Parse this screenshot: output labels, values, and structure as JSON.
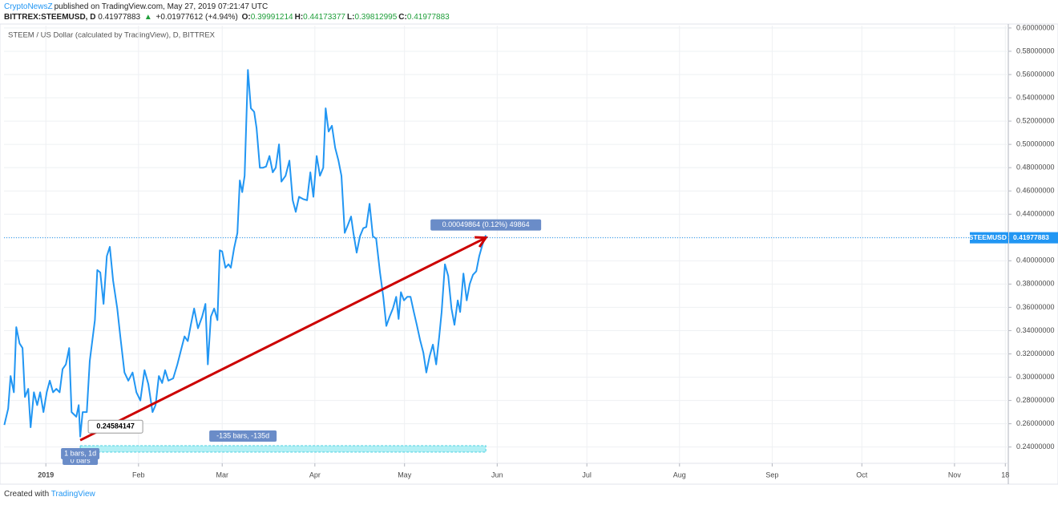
{
  "header": {
    "author": "CryptoNewsZ",
    "published": "published on TradingView.com, May 27, 2019 07:21:47 UTC",
    "symbol": "BITTREX:STEEMUSD, D",
    "last": "0.41977883",
    "arrow": "▲",
    "change": "+0.01977612 (+4.94%)",
    "ohlc": [
      {
        "key": "O:",
        "value": "0.39991214"
      },
      {
        "key": "H:",
        "value": "0.44173377"
      },
      {
        "key": "L:",
        "value": "0.39812995"
      },
      {
        "key": "C:",
        "value": "0.41977883"
      }
    ]
  },
  "chart_data": {
    "type": "line",
    "title": "STEEM / US Dollar (calculated by TradingView), D, BITTREX",
    "x": [
      -13.9,
      -12.6,
      -11.8,
      -10.7,
      -9.9,
      -8.8,
      -7.8,
      -7.0,
      -5.9,
      -5.1,
      -4.0,
      -2.9,
      -1.9,
      -0.8,
      0.3,
      1.3,
      2.4,
      3.5,
      4.6,
      5.6,
      6.7,
      7.8,
      8.6,
      10.2,
      11.0,
      11.5,
      12.3,
      13.7,
      14.7,
      16.4,
      17.2,
      18.2,
      19.3,
      20.4,
      21.4,
      22.5,
      23.9,
      24.9,
      26.3,
      27.6,
      29.0,
      30.3,
      31.6,
      33.0,
      34.3,
      35.7,
      36.7,
      37.8,
      38.9,
      39.9,
      41.0,
      42.6,
      44.0,
      45.0,
      46.4,
      47.5,
      48.5,
      49.6,
      50.9,
      52.3,
      53.4,
      54.2,
      55.2,
      56.3,
      57.4,
      58.2,
      59.0,
      60.1,
      61.1,
      61.9,
      63.0,
      64.1,
      64.9,
      65.7,
      66.5,
      67.6,
      68.6,
      69.7,
      70.5,
      71.6,
      72.7,
      73.7,
      74.8,
      75.9,
      76.9,
      78.0,
      78.8,
      80.2,
      81.5,
      82.6,
      83.6,
      84.7,
      86.1,
      87.4,
      88.5,
      89.5,
      90.6,
      91.7,
      92.8,
      93.6,
      94.6,
      95.7,
      96.8,
      97.9,
      98.9,
      100.0,
      101.1,
      102.1,
      102.9,
      104.0,
      105.1,
      106.2,
      107.2,
      108.3,
      109.4,
      110.5,
      111.8,
      112.9,
      113.9,
      115.0,
      116.1,
      117.2,
      118.0,
      118.8,
      119.8,
      120.9,
      122.0,
      123.1,
      124.1,
      125.2,
      126.3,
      127.3,
      128.4,
      129.5,
      130.6,
      131.6,
      132.4,
      133.5,
      134.6,
      135.7,
      136.7,
      137.8,
      138.6,
      139.7,
      140.8,
      141.8,
      142.9,
      144.0,
      145.0,
      146.1,
      147.2
    ],
    "series": [
      {
        "name": "STEEMUSD",
        "color": "#2196f3",
        "values": [
          0.259,
          0.273,
          0.301,
          0.287,
          0.343,
          0.329,
          0.325,
          0.283,
          0.29,
          0.257,
          0.287,
          0.276,
          0.287,
          0.27,
          0.287,
          0.297,
          0.287,
          0.29,
          0.287,
          0.307,
          0.311,
          0.325,
          0.27,
          0.266,
          0.276,
          0.249,
          0.27,
          0.27,
          0.314,
          0.349,
          0.392,
          0.39,
          0.363,
          0.404,
          0.412,
          0.383,
          0.359,
          0.335,
          0.304,
          0.297,
          0.304,
          0.287,
          0.28,
          0.306,
          0.294,
          0.27,
          0.276,
          0.301,
          0.295,
          0.306,
          0.297,
          0.299,
          0.311,
          0.321,
          0.335,
          0.331,
          0.345,
          0.359,
          0.342,
          0.352,
          0.363,
          0.311,
          0.352,
          0.359,
          0.349,
          0.409,
          0.408,
          0.394,
          0.397,
          0.394,
          0.411,
          0.424,
          0.469,
          0.459,
          0.473,
          0.564,
          0.531,
          0.528,
          0.514,
          0.48,
          0.48,
          0.481,
          0.49,
          0.476,
          0.48,
          0.5,
          0.468,
          0.473,
          0.486,
          0.452,
          0.442,
          0.455,
          0.453,
          0.452,
          0.476,
          0.455,
          0.49,
          0.473,
          0.48,
          0.531,
          0.511,
          0.516,
          0.497,
          0.486,
          0.473,
          0.424,
          0.431,
          0.438,
          0.424,
          0.407,
          0.421,
          0.428,
          0.429,
          0.449,
          0.421,
          0.419,
          0.39,
          0.369,
          0.344,
          0.352,
          0.359,
          0.369,
          0.35,
          0.373,
          0.366,
          0.369,
          0.369,
          0.356,
          0.345,
          0.332,
          0.321,
          0.304,
          0.318,
          0.328,
          0.311,
          0.335,
          0.356,
          0.397,
          0.387,
          0.359,
          0.345,
          0.366,
          0.356,
          0.389,
          0.366,
          0.38,
          0.388,
          0.391,
          0.404,
          0.414,
          0.422
        ]
      }
    ],
    "last_price": 0.41977883,
    "xlim": [
      -14,
      322
    ],
    "xticks": [
      {
        "value": 0,
        "label": "2019"
      },
      {
        "value": 31,
        "label": "Feb"
      },
      {
        "value": 59,
        "label": "Mar"
      },
      {
        "value": 90,
        "label": "Apr"
      },
      {
        "value": 120,
        "label": "May"
      },
      {
        "value": 151,
        "label": "Jun"
      },
      {
        "value": 181,
        "label": "Jul"
      },
      {
        "value": 212,
        "label": "Aug"
      },
      {
        "value": 243,
        "label": "Sep"
      },
      {
        "value": 273,
        "label": "Oct"
      },
      {
        "value": 304,
        "label": "Nov"
      },
      {
        "value": 321,
        "label": "18"
      }
    ],
    "ylim": [
      0.226,
      0.602
    ],
    "yticks": [
      {
        "value": 0.24,
        "label": "0.24000000"
      },
      {
        "value": 0.26,
        "label": "0.26000000"
      },
      {
        "value": 0.28,
        "label": "0.28000000"
      },
      {
        "value": 0.3,
        "label": "0.30000000"
      },
      {
        "value": 0.32,
        "label": "0.32000000"
      },
      {
        "value": 0.34,
        "label": "0.34000000"
      },
      {
        "value": 0.36,
        "label": "0.36000000"
      },
      {
        "value": 0.38,
        "label": "0.38000000"
      },
      {
        "value": 0.4,
        "label": "0.40000000"
      },
      {
        "value": 0.42,
        "label": "0.42000000"
      },
      {
        "value": 0.44,
        "label": "0.44000000"
      },
      {
        "value": 0.46,
        "label": "0.46000000"
      },
      {
        "value": 0.48,
        "label": "0.48000000"
      },
      {
        "value": 0.5,
        "label": "0.50000000"
      },
      {
        "value": 0.52,
        "label": "0.52000000"
      },
      {
        "value": 0.54,
        "label": "0.54000000"
      },
      {
        "value": 0.56,
        "label": "0.56000000"
      },
      {
        "value": 0.58,
        "label": "0.58000000"
      },
      {
        "value": 0.6,
        "label": "0.60000000"
      }
    ],
    "grid": true,
    "drawings": {
      "arrow": {
        "x": [
          11.5,
          147.2
        ],
        "y": [
          0.24584147,
          0.4198
        ],
        "color": "#cc0000"
      },
      "measure_label": "0.00049864 (0.12%) 49864",
      "range": {
        "x": [
          11.5,
          147.2
        ],
        "label": "-135 bars, -135d"
      },
      "bars_label": "1 bars, 1d",
      "bars_label_hidden": "0 bars"
    }
  },
  "footer": {
    "created": "Created with",
    "brand": "TradingView"
  }
}
